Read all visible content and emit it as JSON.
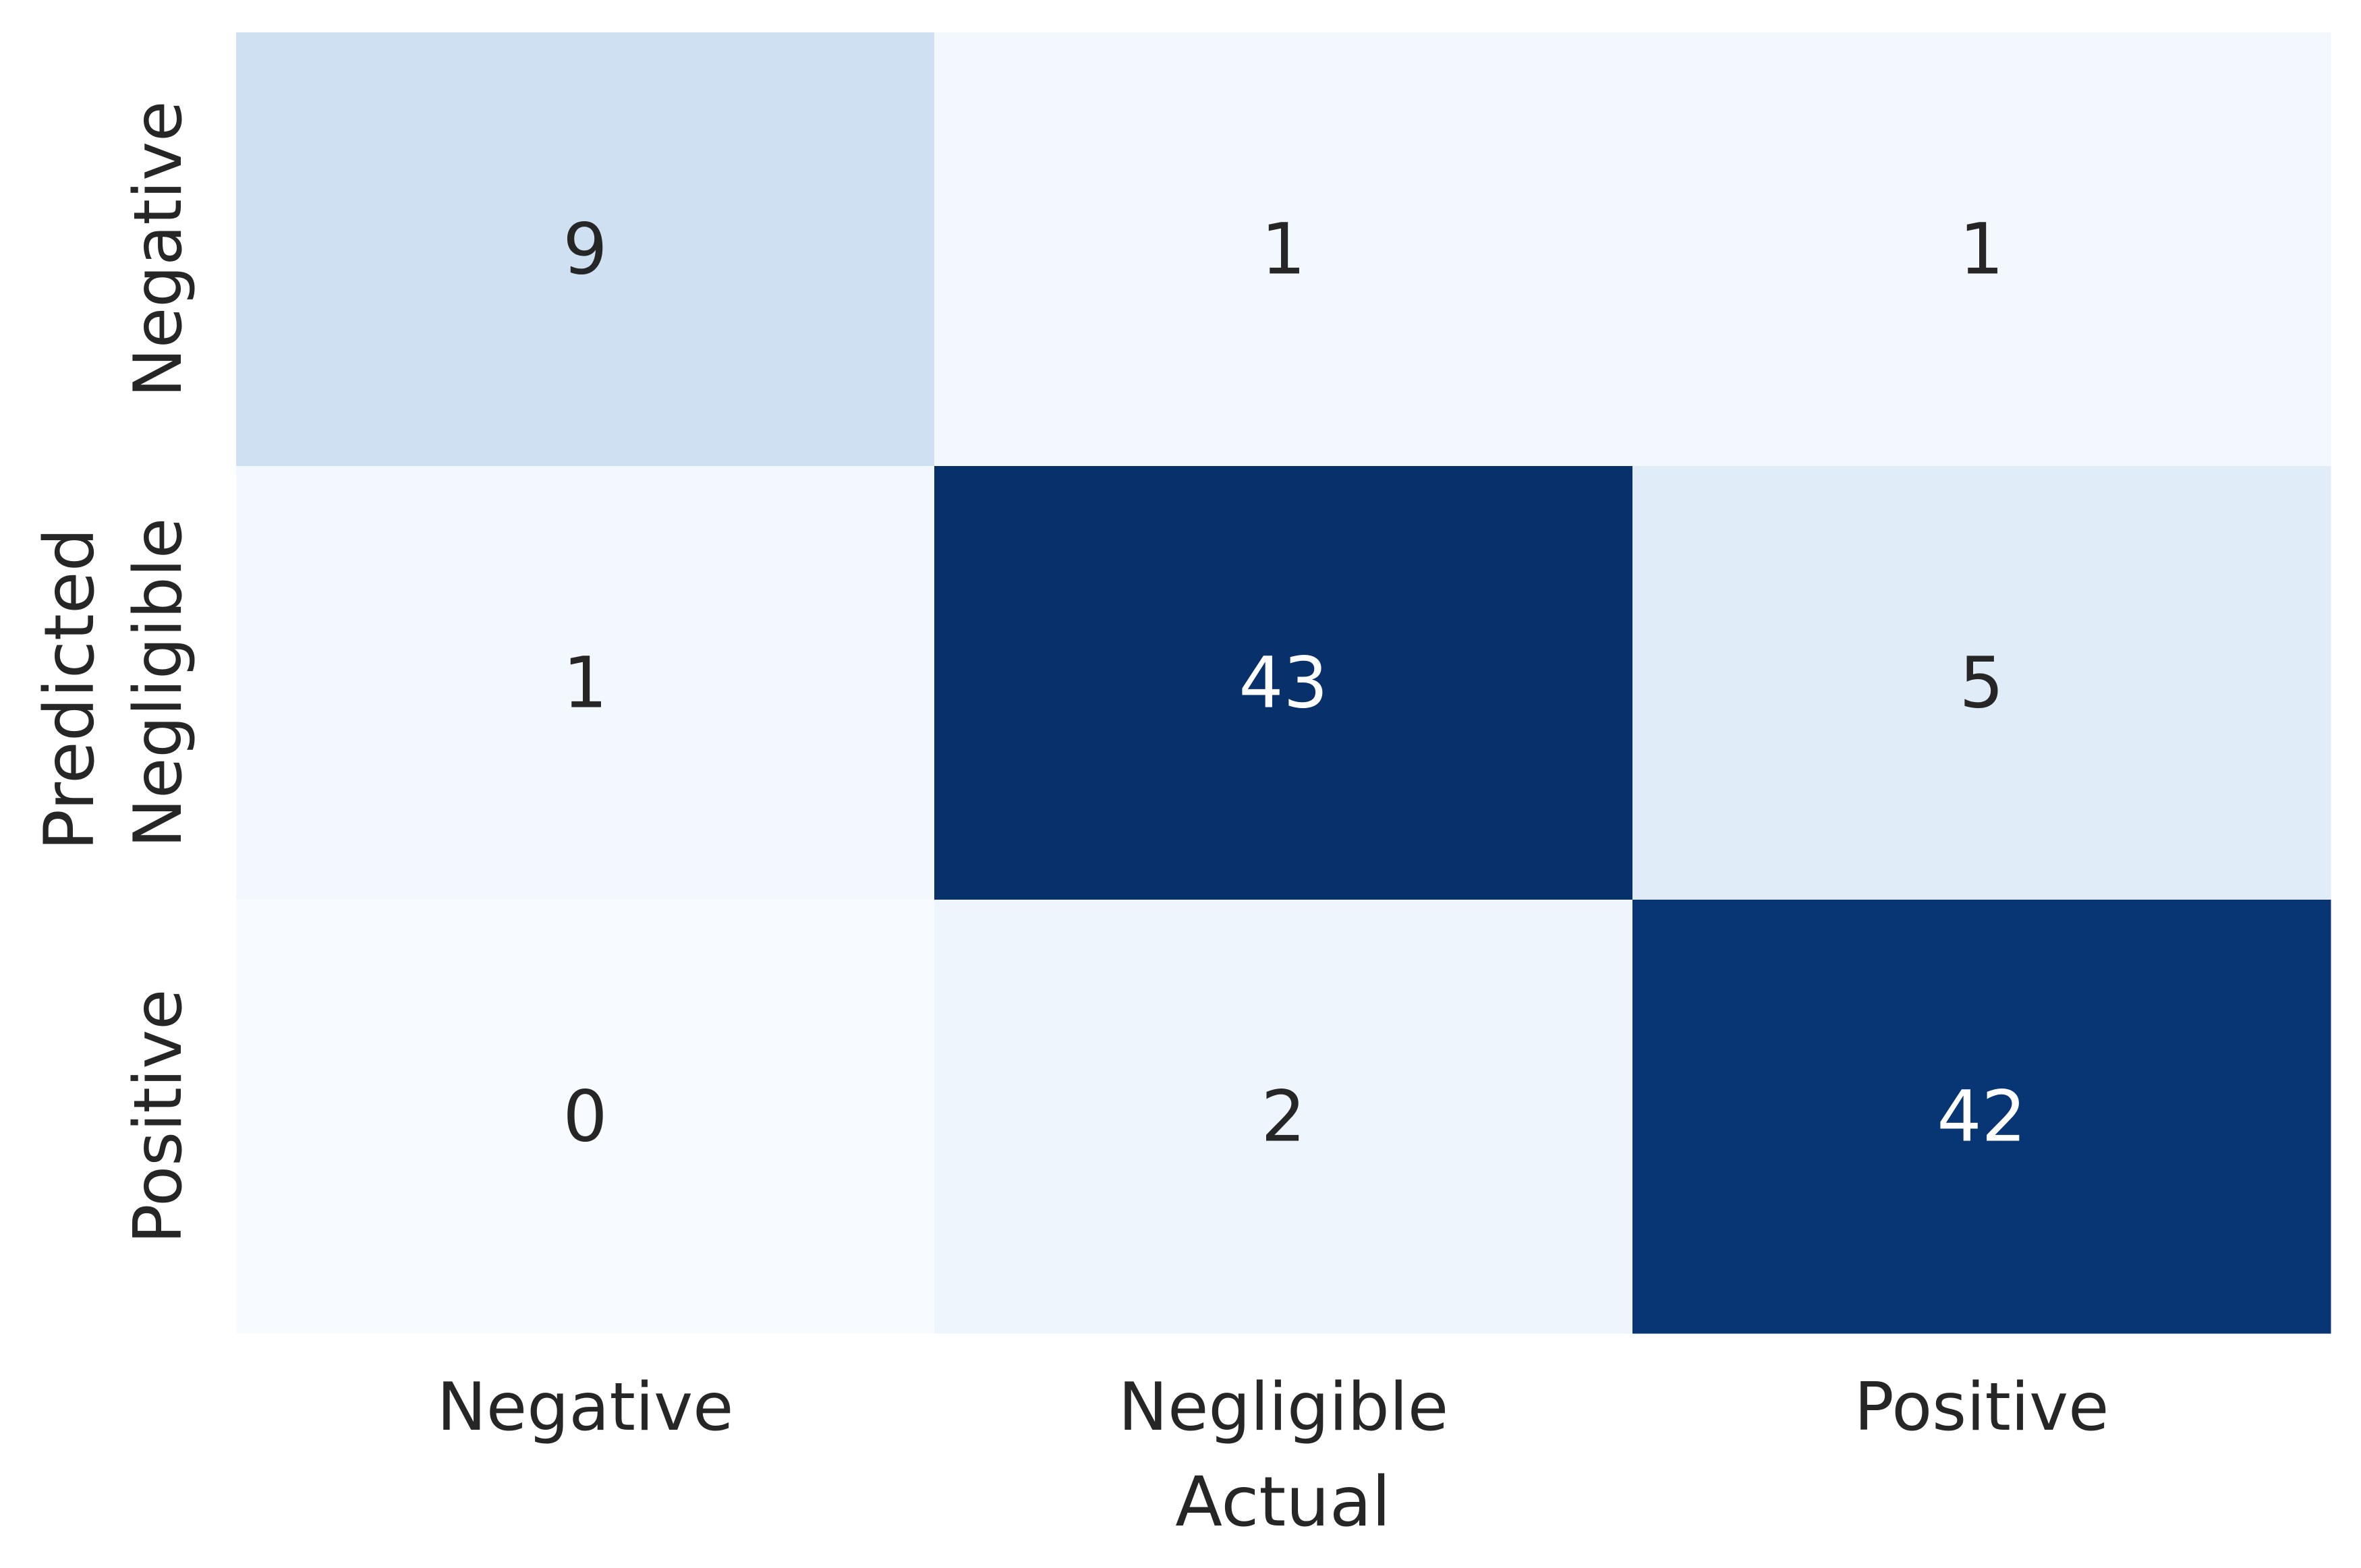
{
  "chart_data": {
    "type": "heatmap",
    "title": "",
    "xlabel": "Actual",
    "ylabel": "Predicted",
    "x_categories": [
      "Negative",
      "Negligible",
      "Positive"
    ],
    "y_categories": [
      "Negative",
      "Negligible",
      "Positive"
    ],
    "values": [
      [
        9,
        1,
        1
      ],
      [
        1,
        43,
        5
      ],
      [
        0,
        2,
        42
      ]
    ],
    "colormap": "Blues",
    "color_scale": [
      "#f7fbff",
      "#deebf7",
      "#c6dbef",
      "#9ecae1",
      "#6baed6",
      "#4292c6",
      "#2171b5",
      "#08519c",
      "#08306b"
    ],
    "value_range": [
      0,
      43
    ],
    "dark_text_color": "#262626",
    "light_text_color": "#ffffff",
    "colorbar": false,
    "grid": false
  }
}
